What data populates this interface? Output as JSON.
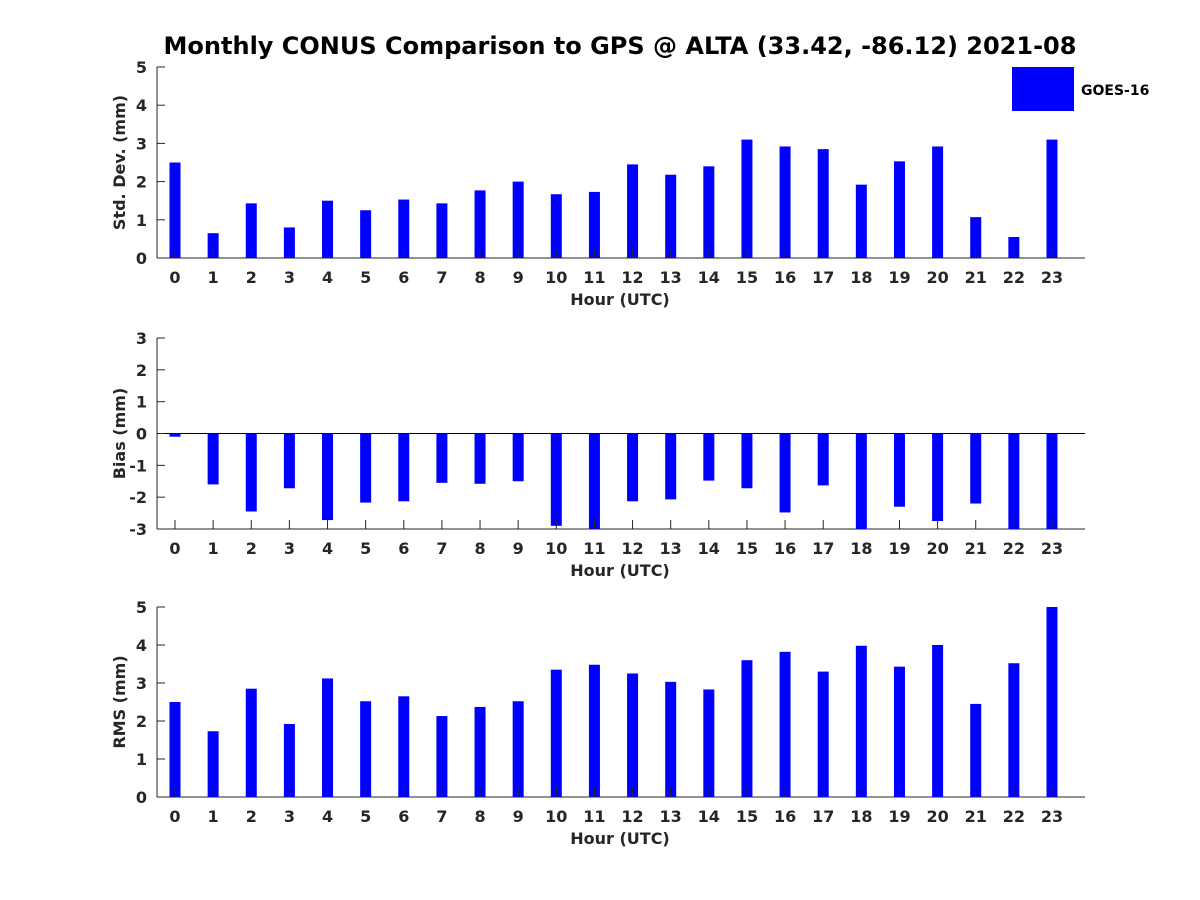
{
  "title": "Monthly CONUS Comparison to GPS @ ALTA (33.42, -86.12) 2021-08",
  "legend": {
    "label": "GOES-16",
    "color": "#0000ff",
    "placement": "top-right"
  },
  "chart_data": [
    {
      "type": "bar",
      "name": "std",
      "color": "#0000ff",
      "categories": [
        "0",
        "1",
        "2",
        "3",
        "4",
        "5",
        "6",
        "7",
        "8",
        "9",
        "10",
        "11",
        "12",
        "13",
        "14",
        "15",
        "16",
        "17",
        "18",
        "19",
        "20",
        "21",
        "22",
        "23"
      ],
      "values": [
        2.5,
        0.65,
        1.43,
        0.8,
        1.5,
        1.25,
        1.53,
        1.43,
        1.77,
        2.0,
        1.67,
        1.73,
        2.45,
        2.18,
        2.4,
        3.1,
        2.92,
        2.85,
        1.92,
        2.53,
        2.92,
        1.07,
        0.55,
        3.1
      ],
      "xlabel": "Hour (UTC)",
      "ylabel": "Std. Dev. (mm)",
      "ylim": [
        0,
        5
      ],
      "yticks": [
        "0",
        "1",
        "2",
        "3",
        "4",
        "5"
      ],
      "grid": false
    },
    {
      "type": "bar",
      "name": "bias",
      "color": "#0000ff",
      "categories": [
        "0",
        "1",
        "2",
        "3",
        "4",
        "5",
        "6",
        "7",
        "8",
        "9",
        "10",
        "11",
        "12",
        "13",
        "14",
        "15",
        "16",
        "17",
        "18",
        "19",
        "20",
        "21",
        "22",
        "23"
      ],
      "values": [
        -0.1,
        -1.6,
        -2.45,
        -1.72,
        -2.72,
        -2.17,
        -2.13,
        -1.55,
        -1.58,
        -1.5,
        -2.9,
        -3.0,
        -2.13,
        -2.07,
        -1.48,
        -1.72,
        -2.48,
        -1.63,
        -3.0,
        -2.3,
        -2.75,
        -2.2,
        -3.0,
        -3.0
      ],
      "xlabel": "Hour (UTC)",
      "ylabel": "Bias (mm)",
      "ylim": [
        -3,
        3
      ],
      "yticks": [
        "-3",
        "-2",
        "-1",
        "0",
        "1",
        "2",
        "3"
      ],
      "zero_line": true,
      "grid": false
    },
    {
      "type": "bar",
      "name": "rms",
      "color": "#0000ff",
      "categories": [
        "0",
        "1",
        "2",
        "3",
        "4",
        "5",
        "6",
        "7",
        "8",
        "9",
        "10",
        "11",
        "12",
        "13",
        "14",
        "15",
        "16",
        "17",
        "18",
        "19",
        "20",
        "21",
        "22",
        "23"
      ],
      "values": [
        2.5,
        1.73,
        2.85,
        1.92,
        3.12,
        2.52,
        2.65,
        2.13,
        2.37,
        2.52,
        3.35,
        3.48,
        3.25,
        3.03,
        2.83,
        3.6,
        3.82,
        3.3,
        3.98,
        3.43,
        4.0,
        2.45,
        3.52,
        5.0
      ],
      "xlabel": "Hour (UTC)",
      "ylabel": "RMS (mm)",
      "ylim": [
        0,
        5
      ],
      "yticks": [
        "0",
        "1",
        "2",
        "3",
        "4",
        "5"
      ],
      "grid": false
    }
  ]
}
